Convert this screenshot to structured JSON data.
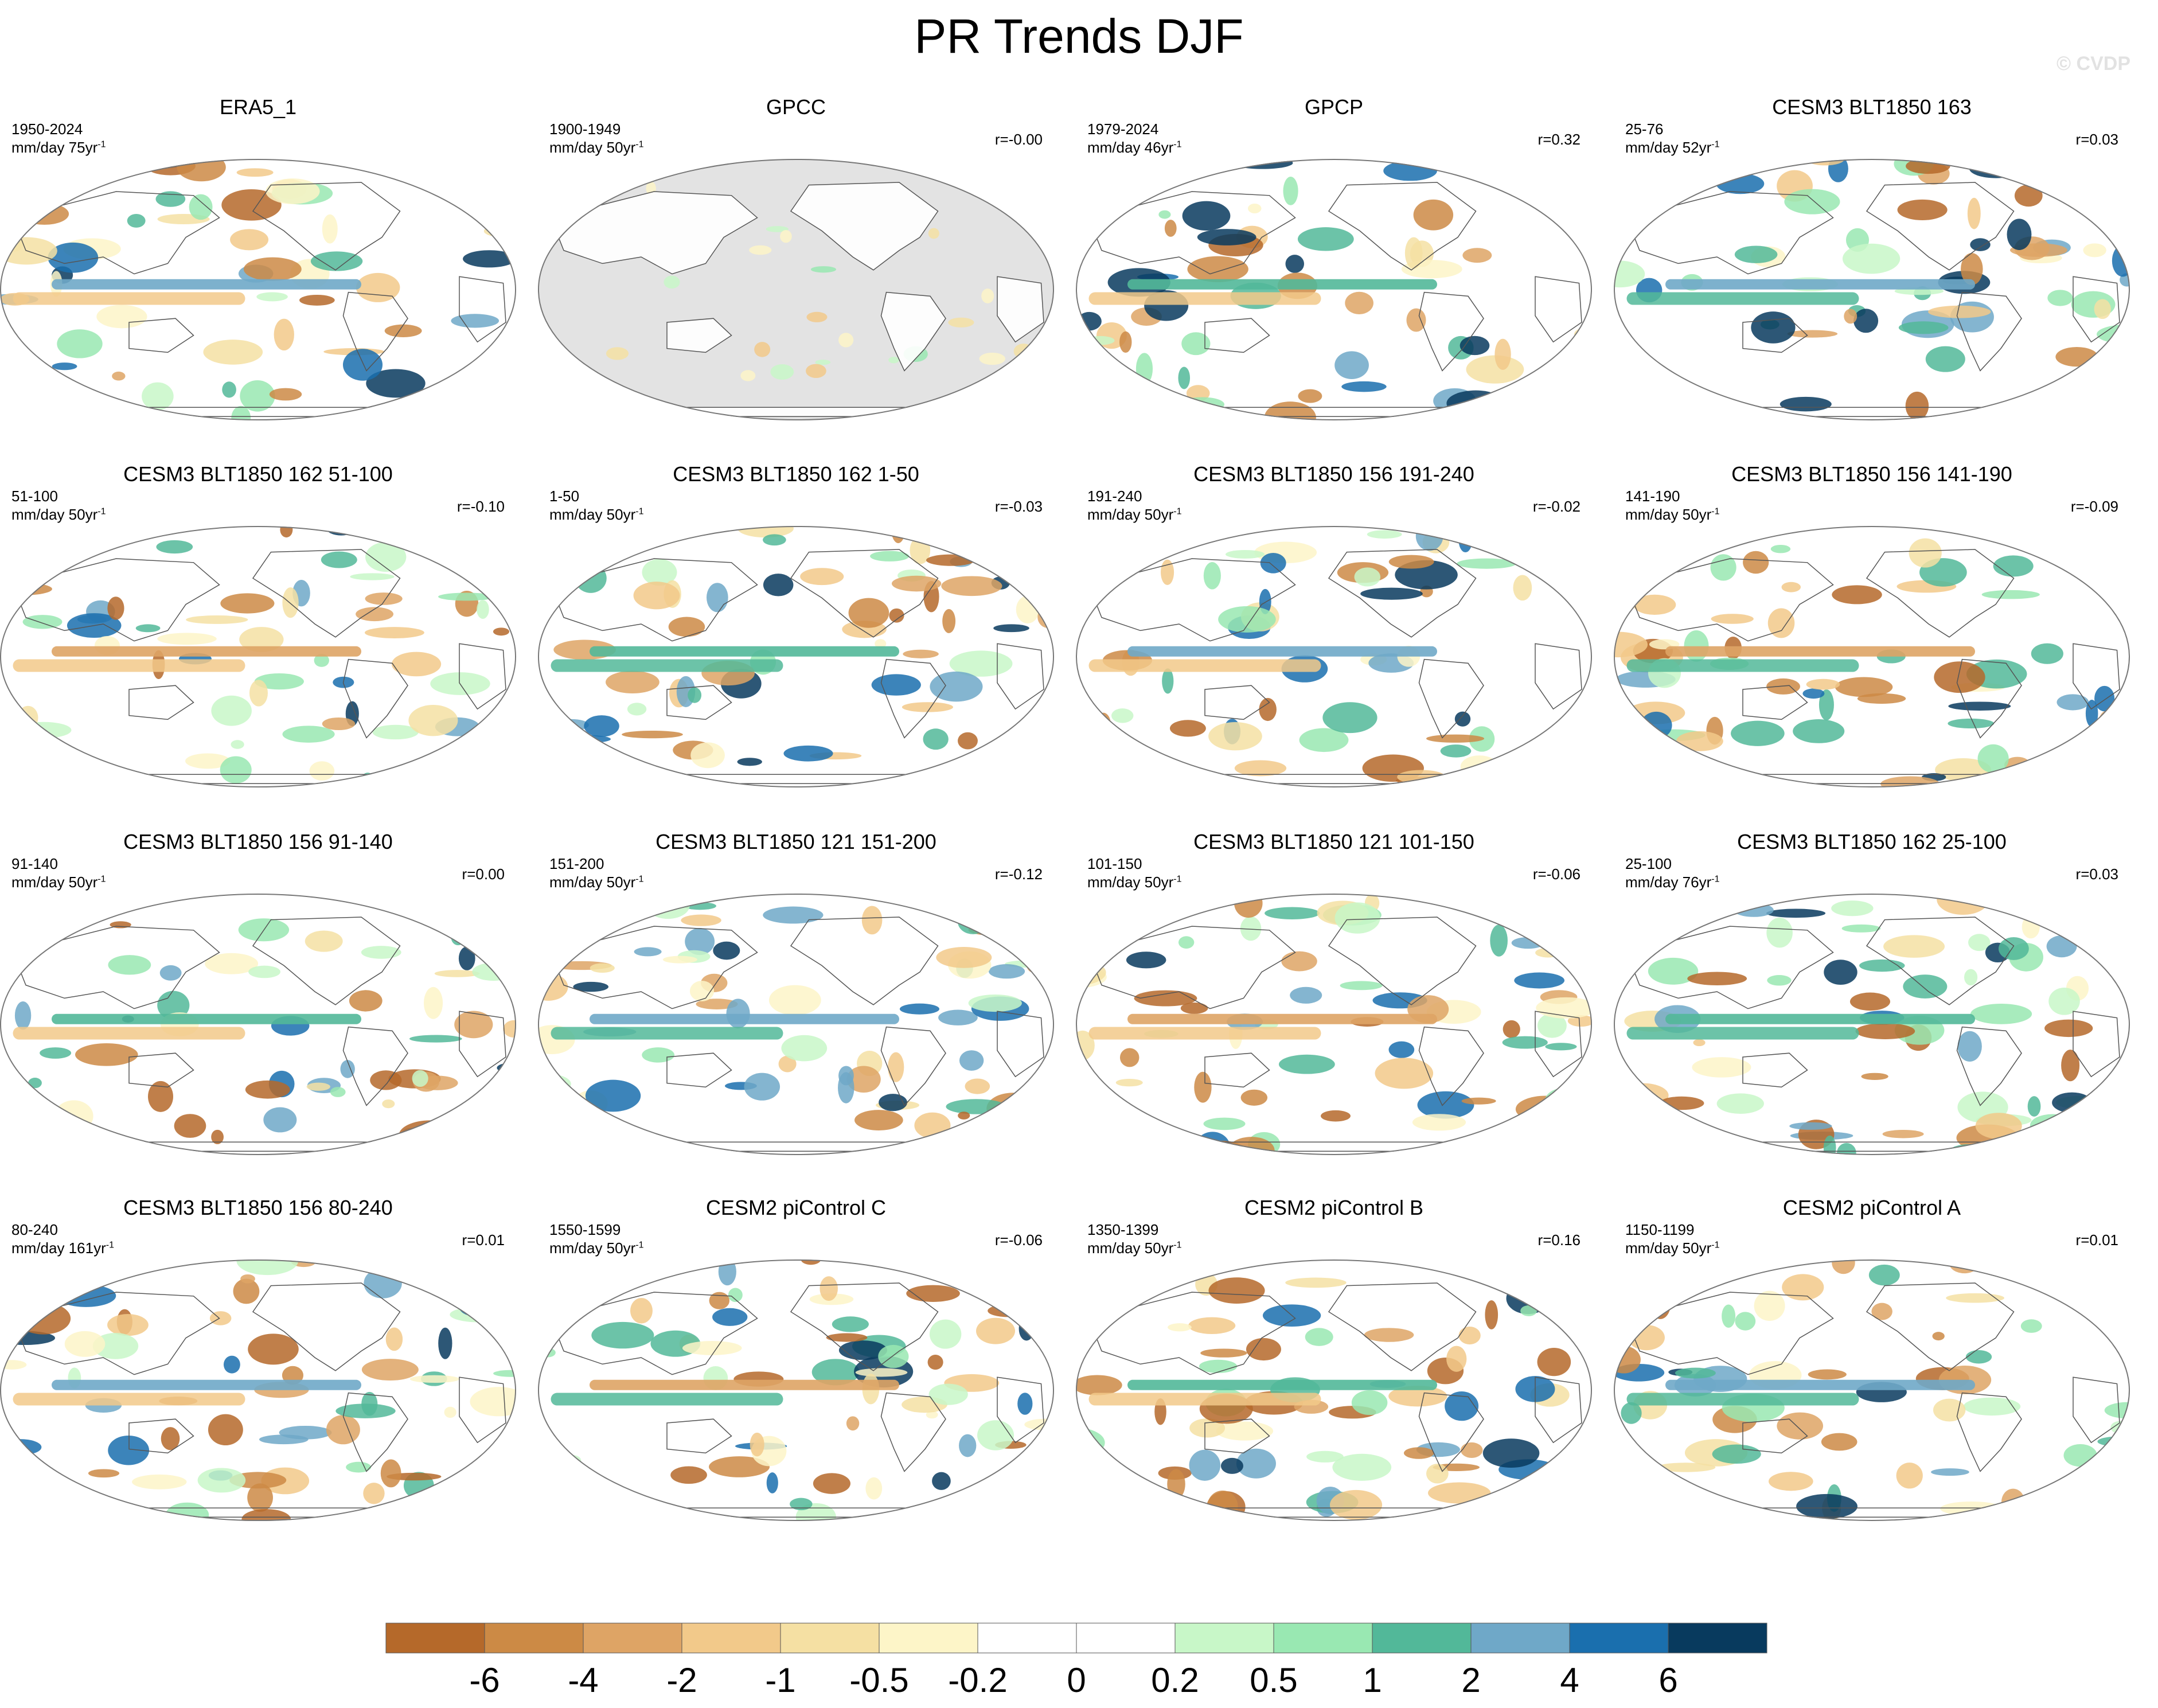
{
  "title": "PR Trends DJF",
  "watermark": "© CVDP",
  "panels": [
    {
      "title": "ERA5_1",
      "period": "1950-2024",
      "units": "mm/day 75yr",
      "units_sup": "-1",
      "corr": "",
      "masked_ocean": false
    },
    {
      "title": "GPCC",
      "period": "1900-1949",
      "units": "mm/day 50yr",
      "units_sup": "-1",
      "corr": "r=-0.00",
      "masked_ocean": true
    },
    {
      "title": "GPCP",
      "period": "1979-2024",
      "units": "mm/day 46yr",
      "units_sup": "-1",
      "corr": "r=0.32",
      "masked_ocean": false
    },
    {
      "title": "CESM3 BLT1850 163",
      "period": "25-76",
      "units": "mm/day 52yr",
      "units_sup": "-1",
      "corr": "r=0.03",
      "masked_ocean": false
    },
    {
      "title": "CESM3 BLT1850 162 51-100",
      "period": "51-100",
      "units": "mm/day 50yr",
      "units_sup": "-1",
      "corr": "r=-0.10",
      "masked_ocean": false
    },
    {
      "title": "CESM3 BLT1850 162 1-50",
      "period": "1-50",
      "units": "mm/day 50yr",
      "units_sup": "-1",
      "corr": "r=-0.03",
      "masked_ocean": false
    },
    {
      "title": "CESM3 BLT1850 156 191-240",
      "period": "191-240",
      "units": "mm/day 50yr",
      "units_sup": "-1",
      "corr": "r=-0.02",
      "masked_ocean": false
    },
    {
      "title": "CESM3 BLT1850 156 141-190",
      "period": "141-190",
      "units": "mm/day 50yr",
      "units_sup": "-1",
      "corr": "r=-0.09",
      "masked_ocean": false
    },
    {
      "title": "CESM3 BLT1850 156 91-140",
      "period": "91-140",
      "units": "mm/day 50yr",
      "units_sup": "-1",
      "corr": "r=0.00",
      "masked_ocean": false
    },
    {
      "title": "CESM3 BLT1850 121 151-200",
      "period": "151-200",
      "units": "mm/day 50yr",
      "units_sup": "-1",
      "corr": "r=-0.12",
      "masked_ocean": false
    },
    {
      "title": "CESM3 BLT1850 121 101-150",
      "period": "101-150",
      "units": "mm/day 50yr",
      "units_sup": "-1",
      "corr": "r=-0.06",
      "masked_ocean": false
    },
    {
      "title": "CESM3 BLT1850 162 25-100",
      "period": "25-100",
      "units": "mm/day 76yr",
      "units_sup": "-1",
      "corr": "r=0.03",
      "masked_ocean": false
    },
    {
      "title": "CESM3 BLT1850 156 80-240",
      "period": "80-240",
      "units": "mm/day 161yr",
      "units_sup": "-1",
      "corr": "r=0.01",
      "masked_ocean": false
    },
    {
      "title": "CESM2 piControl C",
      "period": "1550-1599",
      "units": "mm/day 50yr",
      "units_sup": "-1",
      "corr": "r=-0.06",
      "masked_ocean": false
    },
    {
      "title": "CESM2 piControl B",
      "period": "1350-1399",
      "units": "mm/day 50yr",
      "units_sup": "-1",
      "corr": "r=0.16",
      "masked_ocean": false
    },
    {
      "title": "CESM2 piControl A",
      "period": "1150-1199",
      "units": "mm/day 50yr",
      "units_sup": "-1",
      "corr": "r=0.01",
      "masked_ocean": false
    }
  ],
  "colorbar": {
    "labels": [
      "-6",
      "-4",
      "-2",
      "-1",
      "-0.5",
      "-0.2",
      "0",
      "0.2",
      "0.5",
      "1",
      "2",
      "4",
      "6"
    ],
    "colors": [
      "#b5692a",
      "#cc8a45",
      "#dea465",
      "#f2c98a",
      "#f5e0a3",
      "#fdf5c8",
      "#ffffff",
      "#ffffff",
      "#c8f7c8",
      "#99e8b2",
      "#52b899",
      "#6fa8c8",
      "#1a6fae",
      "#083a5e"
    ]
  }
}
